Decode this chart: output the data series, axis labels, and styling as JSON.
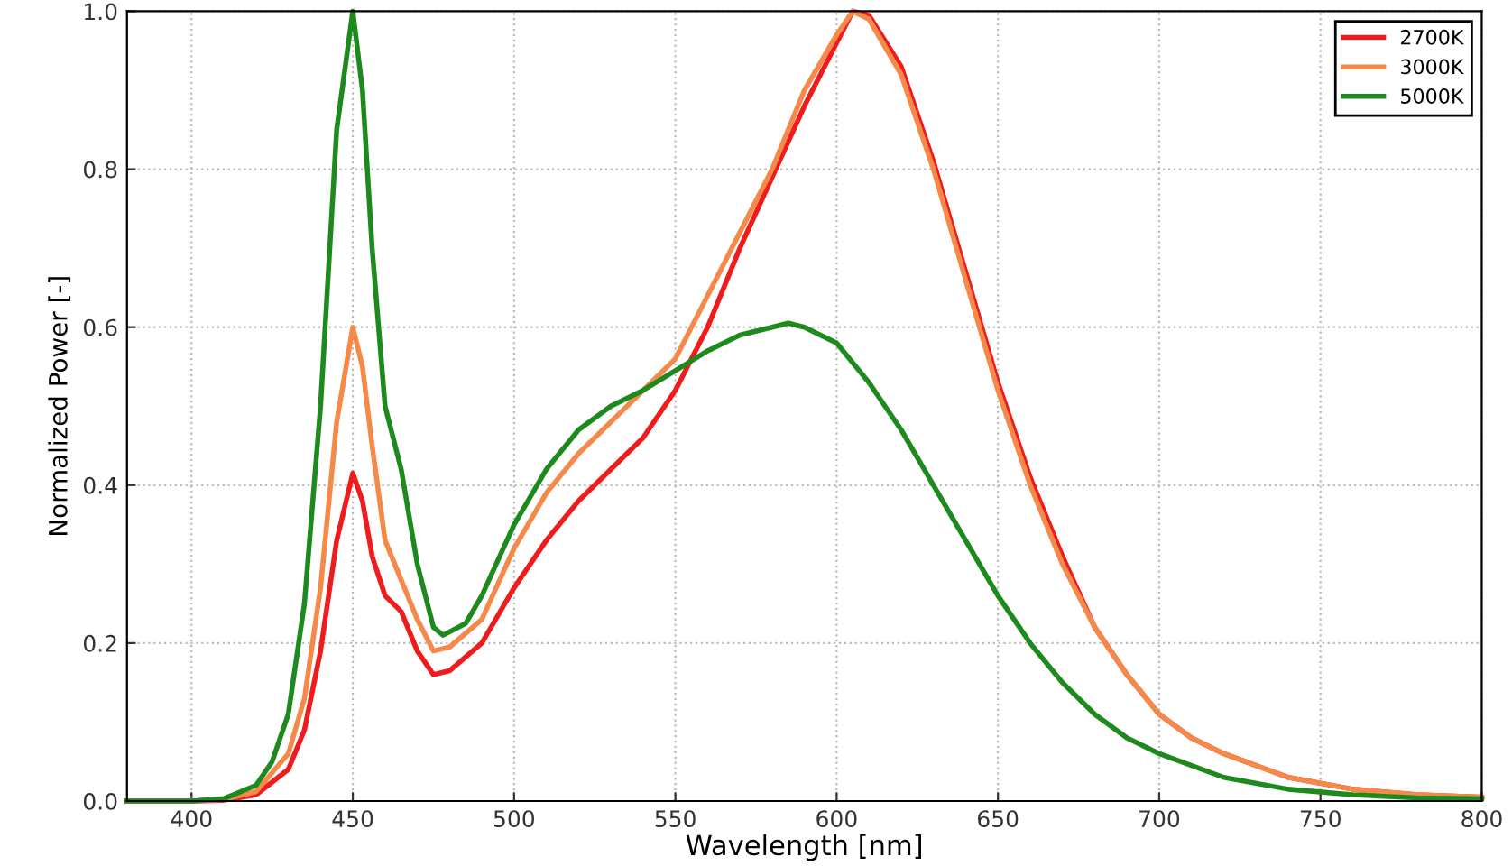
{
  "chart_data": {
    "type": "line",
    "xlabel": "Wavelength [nm]",
    "ylabel": "Normalized Power [-]",
    "xlim": [
      380,
      800
    ],
    "xticks": [
      400,
      450,
      500,
      550,
      600,
      650,
      700,
      750,
      800
    ],
    "ylim": [
      0,
      1.0
    ],
    "yticks": [
      {
        "value": 0,
        "label": "0.0"
      },
      {
        "value": 0.2,
        "label": "0.2"
      },
      {
        "value": 0.4,
        "label": "0.4"
      },
      {
        "value": 0.6,
        "label": "0.6"
      },
      {
        "value": 0.8,
        "label": "0.8"
      },
      {
        "value": 1.0,
        "label": "1.0"
      }
    ],
    "grid": true,
    "legend": "top right",
    "line_style": "solid",
    "marker": "none",
    "series": [
      {
        "name": "2700K",
        "color": "#ee1c1c",
        "x": [
          380,
          400,
          410,
          420,
          430,
          435,
          440,
          445,
          450,
          453,
          456,
          460,
          465,
          470,
          475,
          480,
          490,
          500,
          510,
          520,
          530,
          540,
          550,
          560,
          570,
          580,
          590,
          600,
          605,
          610,
          620,
          630,
          640,
          650,
          660,
          670,
          680,
          690,
          700,
          710,
          720,
          740,
          760,
          780,
          800
        ],
        "values": [
          0,
          0,
          0.001,
          0.008,
          0.04,
          0.09,
          0.19,
          0.33,
          0.415,
          0.38,
          0.31,
          0.26,
          0.24,
          0.19,
          0.16,
          0.165,
          0.2,
          0.27,
          0.33,
          0.38,
          0.42,
          0.46,
          0.52,
          0.6,
          0.7,
          0.79,
          0.88,
          0.96,
          1.0,
          0.995,
          0.93,
          0.81,
          0.67,
          0.53,
          0.41,
          0.31,
          0.22,
          0.16,
          0.11,
          0.08,
          0.06,
          0.03,
          0.015,
          0.008,
          0.005
        ]
      },
      {
        "name": "3000K",
        "color": "#f5894a",
        "x": [
          380,
          400,
          410,
          420,
          430,
          435,
          440,
          445,
          450,
          453,
          456,
          460,
          465,
          470,
          475,
          480,
          490,
          500,
          510,
          520,
          530,
          540,
          550,
          560,
          570,
          580,
          590,
          600,
          605,
          610,
          620,
          630,
          640,
          650,
          660,
          670,
          680,
          690,
          700,
          710,
          720,
          740,
          760,
          780,
          800
        ],
        "values": [
          0,
          0,
          0.002,
          0.012,
          0.06,
          0.13,
          0.27,
          0.48,
          0.6,
          0.55,
          0.45,
          0.33,
          0.28,
          0.23,
          0.19,
          0.195,
          0.23,
          0.32,
          0.39,
          0.44,
          0.48,
          0.52,
          0.56,
          0.64,
          0.72,
          0.8,
          0.9,
          0.97,
          1.0,
          0.99,
          0.92,
          0.8,
          0.66,
          0.52,
          0.4,
          0.3,
          0.22,
          0.16,
          0.11,
          0.08,
          0.06,
          0.03,
          0.015,
          0.008,
          0.005
        ]
      },
      {
        "name": "5000K",
        "color": "#1e8a1e",
        "x": [
          380,
          400,
          410,
          420,
          425,
          430,
          435,
          440,
          445,
          450,
          453,
          456,
          460,
          465,
          470,
          475,
          478,
          485,
          490,
          500,
          510,
          520,
          530,
          540,
          550,
          560,
          570,
          580,
          585,
          590,
          600,
          610,
          620,
          630,
          640,
          650,
          660,
          670,
          680,
          690,
          700,
          720,
          740,
          760,
          780,
          800
        ],
        "values": [
          0,
          0,
          0.003,
          0.02,
          0.05,
          0.11,
          0.25,
          0.5,
          0.85,
          1.0,
          0.9,
          0.7,
          0.5,
          0.42,
          0.3,
          0.22,
          0.21,
          0.225,
          0.26,
          0.35,
          0.42,
          0.47,
          0.5,
          0.52,
          0.545,
          0.57,
          0.59,
          0.6,
          0.605,
          0.6,
          0.58,
          0.53,
          0.47,
          0.4,
          0.33,
          0.26,
          0.2,
          0.15,
          0.11,
          0.08,
          0.06,
          0.03,
          0.015,
          0.008,
          0.004,
          0.003
        ]
      }
    ]
  }
}
